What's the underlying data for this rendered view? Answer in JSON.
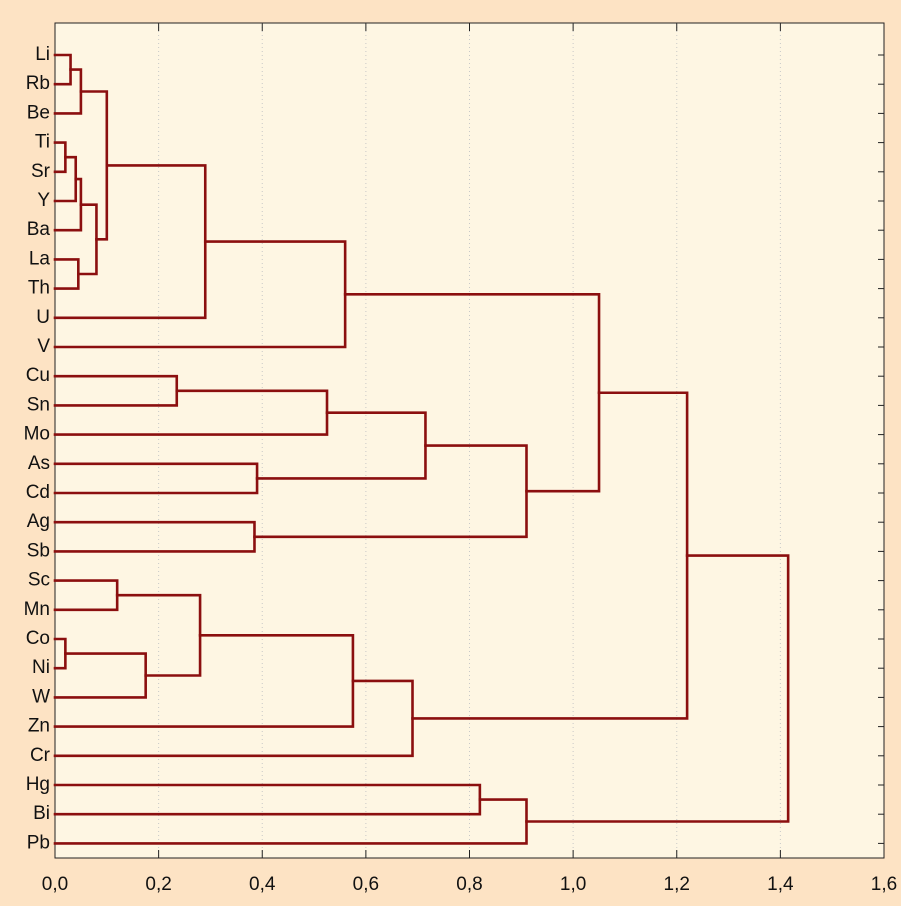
{
  "chart_data": {
    "type": "dendrogram",
    "orientation": "horizontal",
    "leaves": [
      "Li",
      "Rb",
      "Be",
      "Ti",
      "Sr",
      "Y",
      "Ba",
      "La",
      "Th",
      "U",
      "V",
      "Cu",
      "Sn",
      "Mo",
      "As",
      "Cd",
      "Ag",
      "Sb",
      "Sc",
      "Mn",
      "Co",
      "Ni",
      "W",
      "Zn",
      "Cr",
      "Hg",
      "Bi",
      "Pb"
    ],
    "merges": [
      {
        "id": "n1",
        "children": [
          "Li",
          "Rb"
        ],
        "height": 0.03
      },
      {
        "id": "n2",
        "children": [
          "n1",
          "Be"
        ],
        "height": 0.05
      },
      {
        "id": "n3",
        "children": [
          "Ti",
          "Sr"
        ],
        "height": 0.02
      },
      {
        "id": "n4",
        "children": [
          "n3",
          "Y"
        ],
        "height": 0.04
      },
      {
        "id": "n5",
        "children": [
          "n4",
          "Ba"
        ],
        "height": 0.05
      },
      {
        "id": "n6",
        "children": [
          "La",
          "Th"
        ],
        "height": 0.045
      },
      {
        "id": "n7",
        "children": [
          "n5",
          "n6"
        ],
        "height": 0.08
      },
      {
        "id": "n8",
        "children": [
          "n2",
          "n7"
        ],
        "height": 0.1
      },
      {
        "id": "n9",
        "children": [
          "n8",
          "U"
        ],
        "height": 0.29
      },
      {
        "id": "n10",
        "children": [
          "n9",
          "V"
        ],
        "height": 0.56
      },
      {
        "id": "n11",
        "children": [
          "Cu",
          "Sn"
        ],
        "height": 0.235
      },
      {
        "id": "n12",
        "children": [
          "n11",
          "Mo"
        ],
        "height": 0.525
      },
      {
        "id": "n13",
        "children": [
          "As",
          "Cd"
        ],
        "height": 0.39
      },
      {
        "id": "n14",
        "children": [
          "n12",
          "n13"
        ],
        "height": 0.715
      },
      {
        "id": "n15",
        "children": [
          "Ag",
          "Sb"
        ],
        "height": 0.385
      },
      {
        "id": "n16",
        "children": [
          "n14",
          "n15"
        ],
        "height": 0.91
      },
      {
        "id": "n17",
        "children": [
          "n10",
          "n16"
        ],
        "height": 1.05
      },
      {
        "id": "n18",
        "children": [
          "Sc",
          "Mn"
        ],
        "height": 0.12
      },
      {
        "id": "n19",
        "children": [
          "Co",
          "Ni"
        ],
        "height": 0.02
      },
      {
        "id": "n20",
        "children": [
          "n19",
          "W"
        ],
        "height": 0.175
      },
      {
        "id": "n21",
        "children": [
          "n18",
          "n20"
        ],
        "height": 0.28
      },
      {
        "id": "n22",
        "children": [
          "n21",
          "Zn"
        ],
        "height": 0.575
      },
      {
        "id": "n23",
        "children": [
          "n22",
          "Cr"
        ],
        "height": 0.69
      },
      {
        "id": "n24",
        "children": [
          "n17",
          "n23"
        ],
        "height": 1.22
      },
      {
        "id": "n25",
        "children": [
          "Hg",
          "Bi"
        ],
        "height": 0.82
      },
      {
        "id": "n26",
        "children": [
          "n25",
          "Pb"
        ],
        "height": 0.91
      },
      {
        "id": "n27",
        "children": [
          "n24",
          "n26"
        ],
        "height": 1.415
      }
    ],
    "x_ticks": [
      "0,0",
      "0,2",
      "0,4",
      "0,6",
      "0,8",
      "1,0",
      "1,2",
      "1,4",
      "1,6"
    ],
    "xlim": [
      0,
      1.6
    ],
    "grid": "vertical-dotted",
    "colors": {
      "link": "#8b0f0f",
      "plot_background": "#fef6e3",
      "page_background": "#fde3c4"
    }
  }
}
